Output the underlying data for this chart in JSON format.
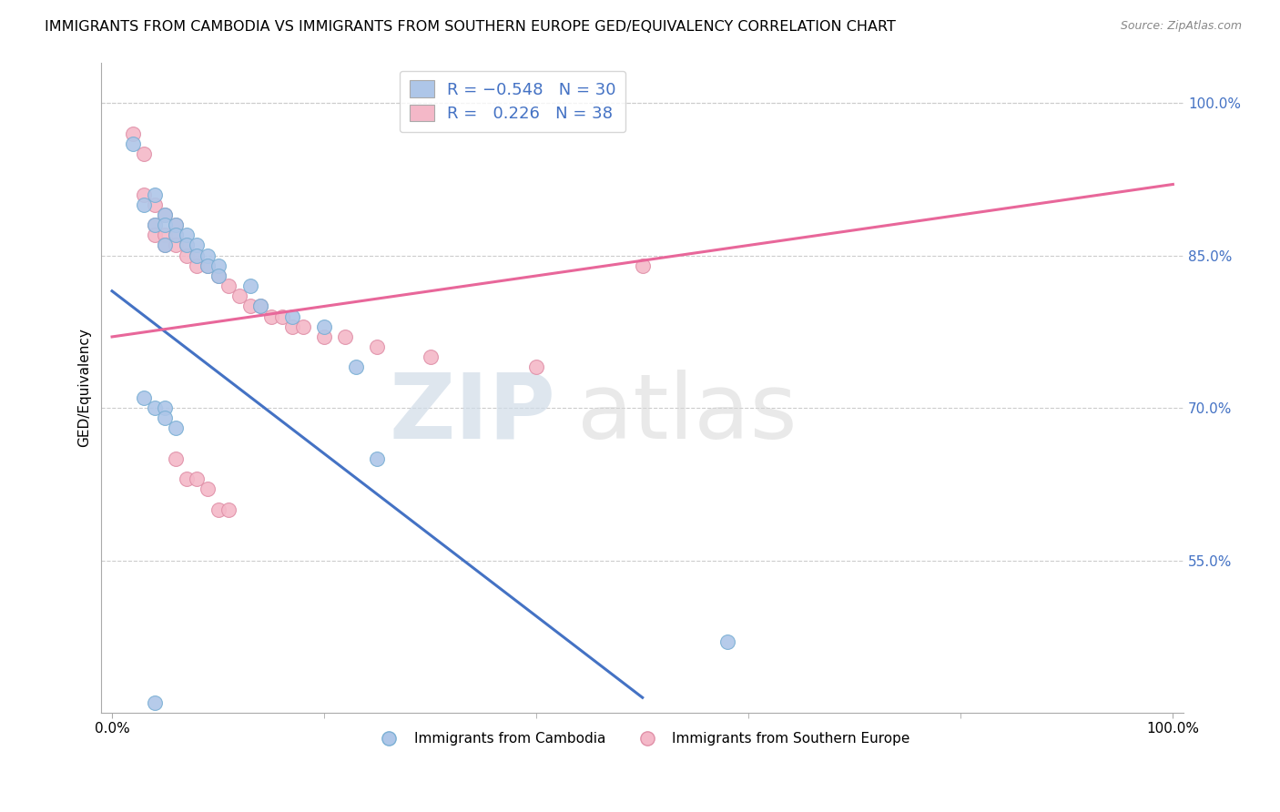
{
  "title": "IMMIGRANTS FROM CAMBODIA VS IMMIGRANTS FROM SOUTHERN EUROPE GED/EQUIVALENCY CORRELATION CHART",
  "source": "Source: ZipAtlas.com",
  "ylabel": "GED/Equivalency",
  "ylim": [
    0.4,
    1.04
  ],
  "xlim": [
    -0.01,
    1.01
  ],
  "yticks": [
    0.55,
    0.7,
    0.85,
    1.0
  ],
  "ytick_labels": [
    "55.0%",
    "70.0%",
    "85.0%",
    "100.0%"
  ],
  "blue_scatter": [
    [
      0.02,
      0.96
    ],
    [
      0.03,
      0.9
    ],
    [
      0.04,
      0.91
    ],
    [
      0.04,
      0.88
    ],
    [
      0.05,
      0.89
    ],
    [
      0.05,
      0.88
    ],
    [
      0.05,
      0.86
    ],
    [
      0.06,
      0.88
    ],
    [
      0.06,
      0.87
    ],
    [
      0.07,
      0.87
    ],
    [
      0.07,
      0.86
    ],
    [
      0.08,
      0.86
    ],
    [
      0.08,
      0.85
    ],
    [
      0.09,
      0.85
    ],
    [
      0.09,
      0.84
    ],
    [
      0.1,
      0.84
    ],
    [
      0.1,
      0.83
    ],
    [
      0.13,
      0.82
    ],
    [
      0.14,
      0.8
    ],
    [
      0.17,
      0.79
    ],
    [
      0.2,
      0.78
    ],
    [
      0.23,
      0.74
    ],
    [
      0.03,
      0.71
    ],
    [
      0.04,
      0.7
    ],
    [
      0.05,
      0.7
    ],
    [
      0.05,
      0.69
    ],
    [
      0.06,
      0.68
    ],
    [
      0.25,
      0.65
    ],
    [
      0.58,
      0.47
    ],
    [
      0.04,
      0.41
    ]
  ],
  "pink_scatter": [
    [
      0.02,
      0.97
    ],
    [
      0.03,
      0.95
    ],
    [
      0.03,
      0.91
    ],
    [
      0.04,
      0.9
    ],
    [
      0.04,
      0.88
    ],
    [
      0.04,
      0.87
    ],
    [
      0.05,
      0.89
    ],
    [
      0.05,
      0.87
    ],
    [
      0.05,
      0.86
    ],
    [
      0.06,
      0.88
    ],
    [
      0.06,
      0.87
    ],
    [
      0.06,
      0.86
    ],
    [
      0.07,
      0.86
    ],
    [
      0.07,
      0.85
    ],
    [
      0.08,
      0.85
    ],
    [
      0.08,
      0.84
    ],
    [
      0.09,
      0.84
    ],
    [
      0.1,
      0.83
    ],
    [
      0.11,
      0.82
    ],
    [
      0.12,
      0.81
    ],
    [
      0.13,
      0.8
    ],
    [
      0.14,
      0.8
    ],
    [
      0.15,
      0.79
    ],
    [
      0.16,
      0.79
    ],
    [
      0.17,
      0.78
    ],
    [
      0.18,
      0.78
    ],
    [
      0.2,
      0.77
    ],
    [
      0.22,
      0.77
    ],
    [
      0.25,
      0.76
    ],
    [
      0.3,
      0.75
    ],
    [
      0.4,
      0.74
    ],
    [
      0.5,
      0.84
    ],
    [
      0.06,
      0.65
    ],
    [
      0.07,
      0.63
    ],
    [
      0.08,
      0.63
    ],
    [
      0.09,
      0.62
    ],
    [
      0.1,
      0.6
    ],
    [
      0.11,
      0.6
    ]
  ],
  "blue_line": {
    "x0": 0.0,
    "y0": 0.815,
    "x1": 0.5,
    "y1": 0.415
  },
  "pink_line": {
    "x0": 0.0,
    "y0": 0.77,
    "x1": 1.0,
    "y1": 0.92
  },
  "blue_line_color": "#4472c4",
  "pink_line_color": "#e8679a",
  "scatter_blue_color": "#aec6e8",
  "scatter_pink_color": "#f4b8c8",
  "scatter_blue_edge": "#7aafd4",
  "scatter_pink_edge": "#e090a8",
  "background_color": "#ffffff",
  "grid_color": "#cccccc",
  "title_fontsize": 11.5,
  "watermark_zip": "ZIP",
  "watermark_atlas": "atlas",
  "legend_bottom_label1": "Immigrants from Cambodia",
  "legend_bottom_label2": "Immigrants from Southern Europe"
}
